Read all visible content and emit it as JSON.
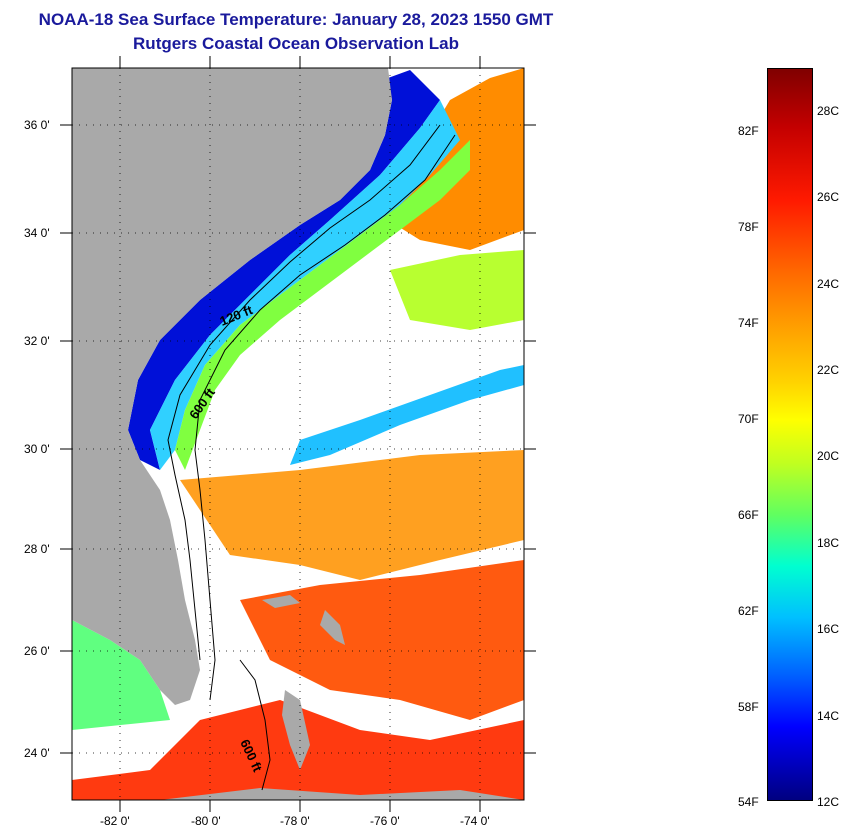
{
  "header": {
    "title": "NOAA-18 Sea Surface Temperature:  January 28, 2023 1550 GMT",
    "subtitle": "Rutgers Coastal Ocean Observation Lab"
  },
  "map": {
    "lat_labels": [
      "36 0'",
      "34 0'",
      "32 0'",
      "30 0'",
      "28 0'",
      "26 0'",
      "24 0'"
    ],
    "lon_labels": [
      "-82 0'",
      "-80 0'",
      "-78 0'",
      "-76 0'",
      "-74 0'"
    ],
    "lat_range": [
      23,
      37
    ],
    "lon_range": [
      -83,
      -73
    ],
    "contour_labels": [
      "120 ft",
      "600 ft",
      "600 ft"
    ],
    "colors": {
      "land": "#a9a9a9",
      "cloud": "#ffffff",
      "cold_shelf": "#0000dd",
      "gulf_stream": "#ff8000"
    }
  },
  "colorbar": {
    "fahrenheit_labels": [
      "82F",
      "78F",
      "74F",
      "70F",
      "66F",
      "62F",
      "58F",
      "54F"
    ],
    "celsius_labels": [
      "28C",
      "26C",
      "24C",
      "22C",
      "20C",
      "18C",
      "16C",
      "14C",
      "12C"
    ]
  }
}
